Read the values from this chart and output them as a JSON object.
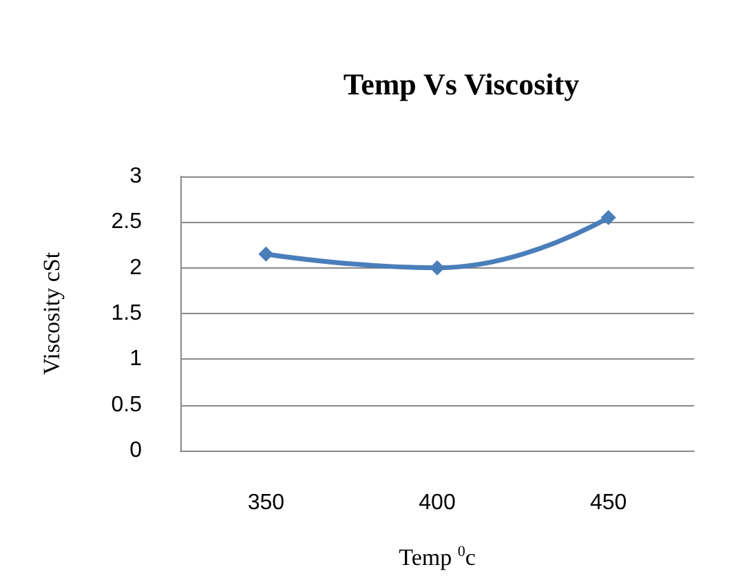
{
  "chart_data": {
    "type": "line",
    "title": "Temp Vs Viscosity",
    "xlabel": "Temp $^{0}$c",
    "ylabel": "Viscosity cSt",
    "categories": [
      "350",
      "400",
      "450"
    ],
    "series": [
      {
        "color": "#4a7ebb",
        "values": [
          2.15,
          2.0,
          2.55
        ]
      }
    ],
    "ylim": [
      0,
      3
    ],
    "yticks": [
      0,
      0.5,
      1,
      1.5,
      2,
      2.5,
      3
    ],
    "grid": "y",
    "marker": "diamond",
    "line_style": "solid"
  }
}
